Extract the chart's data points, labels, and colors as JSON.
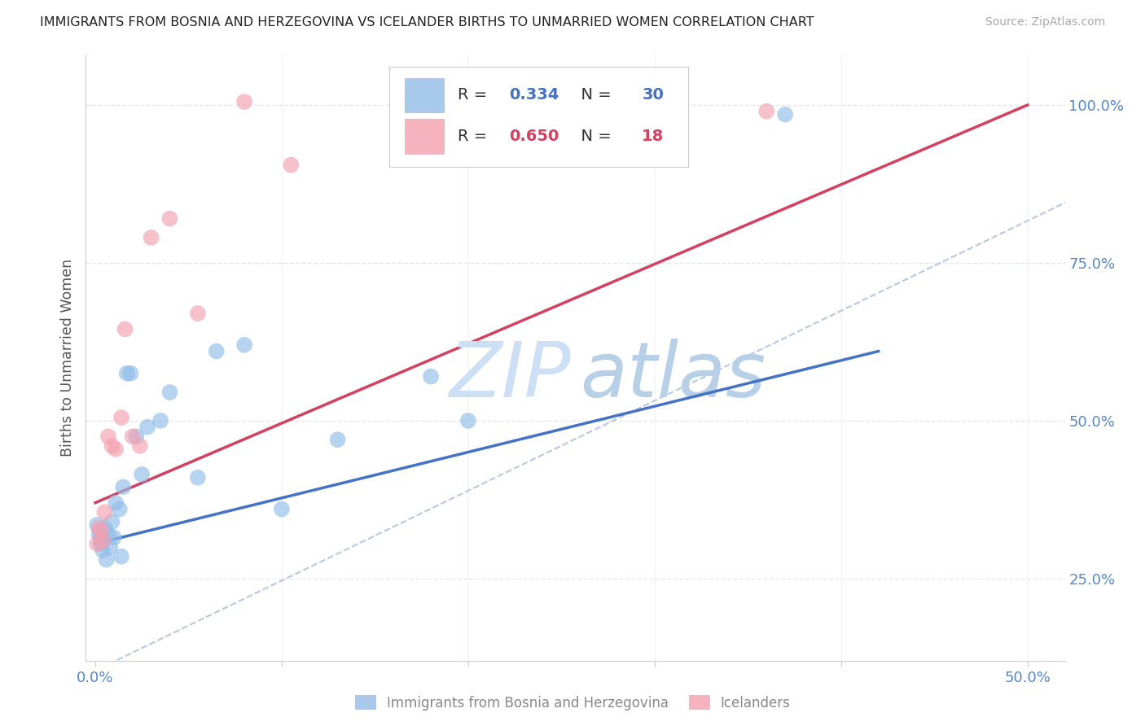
{
  "title": "IMMIGRANTS FROM BOSNIA AND HERZEGOVINA VS ICELANDER BIRTHS TO UNMARRIED WOMEN CORRELATION CHART",
  "source": "Source: ZipAtlas.com",
  "ylabel": "Births to Unmarried Women",
  "xlim": [
    -0.005,
    0.52
  ],
  "ylim": [
    0.12,
    1.08
  ],
  "xtick_positions": [
    0.0,
    0.1,
    0.2,
    0.3,
    0.4,
    0.5
  ],
  "xtick_labels": [
    "0.0%",
    "",
    "",
    "",
    "",
    "50.0%"
  ],
  "ytick_positions": [
    0.25,
    0.5,
    0.75,
    1.0
  ],
  "ytick_labels": [
    "25.0%",
    "50.0%",
    "75.0%",
    "100.0%"
  ],
  "blue_scatter_x": [
    0.001,
    0.002,
    0.003,
    0.003,
    0.004,
    0.005,
    0.006,
    0.007,
    0.008,
    0.009,
    0.01,
    0.011,
    0.013,
    0.014,
    0.015,
    0.017,
    0.019,
    0.022,
    0.025,
    0.028,
    0.035,
    0.04,
    0.055,
    0.065,
    0.08,
    0.1,
    0.13,
    0.18,
    0.2,
    0.37
  ],
  "blue_scatter_y": [
    0.335,
    0.32,
    0.305,
    0.315,
    0.295,
    0.33,
    0.28,
    0.32,
    0.3,
    0.34,
    0.315,
    0.37,
    0.36,
    0.285,
    0.395,
    0.575,
    0.575,
    0.475,
    0.415,
    0.49,
    0.5,
    0.545,
    0.41,
    0.61,
    0.62,
    0.36,
    0.47,
    0.57,
    0.5,
    0.985
  ],
  "pink_scatter_x": [
    0.001,
    0.002,
    0.003,
    0.004,
    0.005,
    0.007,
    0.009,
    0.011,
    0.014,
    0.016,
    0.02,
    0.024,
    0.03,
    0.04,
    0.055,
    0.08,
    0.105,
    0.36
  ],
  "pink_scatter_y": [
    0.305,
    0.33,
    0.325,
    0.31,
    0.355,
    0.475,
    0.46,
    0.455,
    0.505,
    0.645,
    0.475,
    0.46,
    0.79,
    0.82,
    0.67,
    1.005,
    0.905,
    0.99
  ],
  "blue_line_x": [
    0.0,
    0.42
  ],
  "blue_line_y": [
    0.305,
    0.61
  ],
  "pink_line_x": [
    0.0,
    0.5
  ],
  "pink_line_y": [
    0.37,
    1.0
  ],
  "dashed_line_x": [
    -0.01,
    0.72
  ],
  "dashed_line_y": [
    0.09,
    1.13
  ],
  "blue_dot_color": "#90bce8",
  "pink_dot_color": "#f4a0b0",
  "blue_line_color": "#4472c4",
  "pink_line_color": "#d44060",
  "dashed_line_color": "#b8c8e0",
  "grid_color": "#e0e4f0",
  "background_color": "#ffffff",
  "watermark_zip_color": "#ccdff5",
  "watermark_atlas_color": "#b8cfe8",
  "R_blue": "0.334",
  "N_blue": "30",
  "R_pink": "0.650",
  "N_pink": "18",
  "legend_label_blue": "Immigrants from Bosnia and Herzegovina",
  "legend_label_pink": "Icelanders"
}
